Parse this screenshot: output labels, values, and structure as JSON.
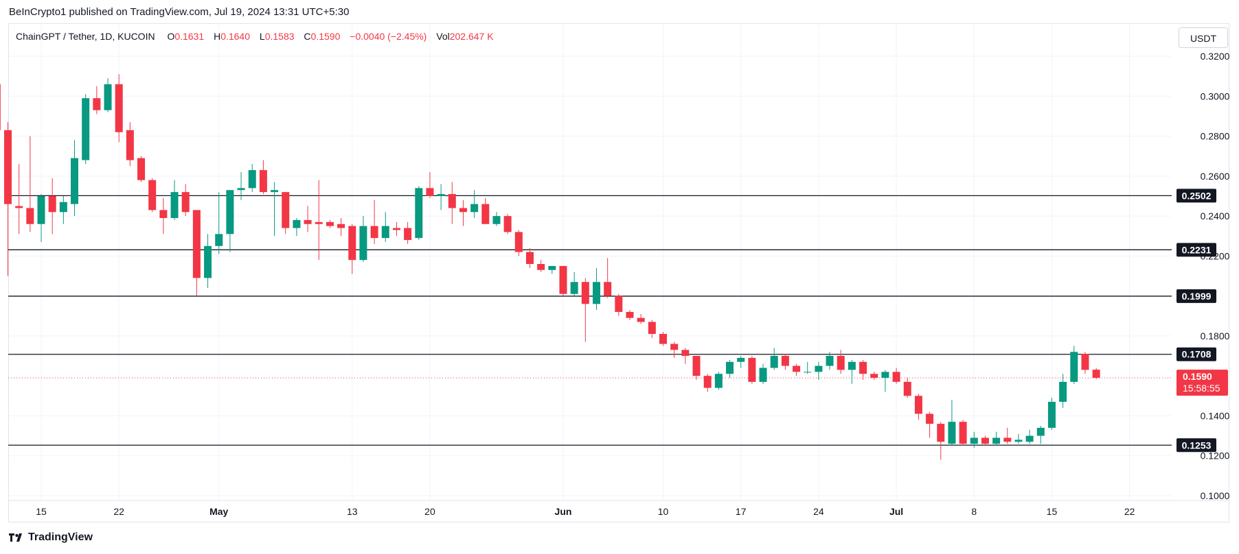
{
  "header": {
    "published": "BeInCrypto1 published on TradingView.com, Jul 19, 2024 13:31 UTC+5:30"
  },
  "legend": {
    "symbol": "ChainGPT / Tether, 1D, KUCOIN",
    "o_label": "O",
    "o_value": "0.1631",
    "h_label": "H",
    "h_value": "0.1640",
    "l_label": "L",
    "l_value": "0.1583",
    "c_label": "C",
    "c_value": "0.1590",
    "change": "−0.0040 (−2.45%)",
    "vol_label": "Vol",
    "vol_value": "202.647 K"
  },
  "currency_button": "USDT",
  "footer": {
    "brand": "TradingView"
  },
  "colors": {
    "up": "#089981",
    "down": "#f23645",
    "level_line": "#131722",
    "price_line": "#f23645"
  },
  "chart_data": {
    "type": "candlestick",
    "symbol": "ChainGPT / Tether",
    "timeframe": "1D",
    "exchange": "KUCOIN",
    "ylim": [
      0.095,
      0.327
    ],
    "y_ticks": [
      "0.3200",
      "0.3000",
      "0.2800",
      "0.2600",
      "0.2400",
      "0.2200",
      "0.1800",
      "0.1400",
      "0.1200",
      "0.1000"
    ],
    "x_ticks": [
      {
        "label": "15",
        "date": "2024-04-15"
      },
      {
        "label": "22",
        "date": "2024-04-22"
      },
      {
        "label": "May",
        "date": "2024-05-01"
      },
      {
        "label": "13",
        "date": "2024-05-13"
      },
      {
        "label": "20",
        "date": "2024-05-20"
      },
      {
        "label": "Jun",
        "date": "2024-06-01"
      },
      {
        "label": "10",
        "date": "2024-06-10"
      },
      {
        "label": "17",
        "date": "2024-06-17"
      },
      {
        "label": "24",
        "date": "2024-06-24"
      },
      {
        "label": "Jul",
        "date": "2024-07-01"
      },
      {
        "label": "8",
        "date": "2024-07-08"
      },
      {
        "label": "15",
        "date": "2024-07-15"
      },
      {
        "label": "22",
        "date": "2024-07-22"
      }
    ],
    "horizontal_levels": [
      0.2502,
      0.2231,
      0.1999,
      0.1708,
      0.1253
    ],
    "last_price": {
      "value": 0.159,
      "label": "0.1590",
      "countdown": "15:58:55"
    },
    "candles": [
      {
        "date": "2024-04-11",
        "o": 0.306,
        "h": 0.307,
        "l": 0.282,
        "c": 0.283
      },
      {
        "date": "2024-04-12",
        "o": 0.283,
        "h": 0.287,
        "l": 0.21,
        "c": 0.246
      },
      {
        "date": "2024-04-13",
        "o": 0.245,
        "h": 0.266,
        "l": 0.231,
        "c": 0.244
      },
      {
        "date": "2024-04-14",
        "o": 0.244,
        "h": 0.28,
        "l": 0.232,
        "c": 0.236
      },
      {
        "date": "2024-04-15",
        "o": 0.236,
        "h": 0.251,
        "l": 0.227,
        "c": 0.25
      },
      {
        "date": "2024-04-16",
        "o": 0.25,
        "h": 0.259,
        "l": 0.231,
        "c": 0.242
      },
      {
        "date": "2024-04-17",
        "o": 0.242,
        "h": 0.25,
        "l": 0.236,
        "c": 0.247
      },
      {
        "date": "2024-04-18",
        "o": 0.246,
        "h": 0.278,
        "l": 0.24,
        "c": 0.269
      },
      {
        "date": "2024-04-19",
        "o": 0.268,
        "h": 0.301,
        "l": 0.266,
        "c": 0.299
      },
      {
        "date": "2024-04-20",
        "o": 0.299,
        "h": 0.305,
        "l": 0.291,
        "c": 0.293
      },
      {
        "date": "2024-04-21",
        "o": 0.293,
        "h": 0.309,
        "l": 0.292,
        "c": 0.306
      },
      {
        "date": "2024-04-22",
        "o": 0.306,
        "h": 0.311,
        "l": 0.277,
        "c": 0.282
      },
      {
        "date": "2024-04-23",
        "o": 0.283,
        "h": 0.287,
        "l": 0.265,
        "c": 0.268
      },
      {
        "date": "2024-04-24",
        "o": 0.269,
        "h": 0.27,
        "l": 0.257,
        "c": 0.258
      },
      {
        "date": "2024-04-25",
        "o": 0.258,
        "h": 0.259,
        "l": 0.242,
        "c": 0.243
      },
      {
        "date": "2024-04-26",
        "o": 0.243,
        "h": 0.249,
        "l": 0.231,
        "c": 0.239
      },
      {
        "date": "2024-04-27",
        "o": 0.239,
        "h": 0.258,
        "l": 0.238,
        "c": 0.252
      },
      {
        "date": "2024-04-28",
        "o": 0.252,
        "h": 0.256,
        "l": 0.24,
        "c": 0.242
      },
      {
        "date": "2024-04-29",
        "o": 0.243,
        "h": 0.243,
        "l": 0.2,
        "c": 0.209
      },
      {
        "date": "2024-04-30",
        "o": 0.209,
        "h": 0.231,
        "l": 0.204,
        "c": 0.225
      },
      {
        "date": "2024-05-01",
        "o": 0.225,
        "h": 0.252,
        "l": 0.221,
        "c": 0.231
      },
      {
        "date": "2024-05-02",
        "o": 0.231,
        "h": 0.253,
        "l": 0.222,
        "c": 0.253
      },
      {
        "date": "2024-05-03",
        "o": 0.253,
        "h": 0.262,
        "l": 0.248,
        "c": 0.254
      },
      {
        "date": "2024-05-04",
        "o": 0.254,
        "h": 0.266,
        "l": 0.252,
        "c": 0.263
      },
      {
        "date": "2024-05-05",
        "o": 0.263,
        "h": 0.268,
        "l": 0.251,
        "c": 0.252
      },
      {
        "date": "2024-05-06",
        "o": 0.252,
        "h": 0.257,
        "l": 0.23,
        "c": 0.253
      },
      {
        "date": "2024-05-07",
        "o": 0.252,
        "h": 0.252,
        "l": 0.231,
        "c": 0.234
      },
      {
        "date": "2024-05-08",
        "o": 0.234,
        "h": 0.239,
        "l": 0.23,
        "c": 0.238
      },
      {
        "date": "2024-05-09",
        "o": 0.238,
        "h": 0.245,
        "l": 0.232,
        "c": 0.236
      },
      {
        "date": "2024-05-10",
        "o": 0.237,
        "h": 0.258,
        "l": 0.218,
        "c": 0.236
      },
      {
        "date": "2024-05-11",
        "o": 0.237,
        "h": 0.238,
        "l": 0.234,
        "c": 0.235
      },
      {
        "date": "2024-05-12",
        "o": 0.236,
        "h": 0.239,
        "l": 0.23,
        "c": 0.234
      },
      {
        "date": "2024-05-13",
        "o": 0.235,
        "h": 0.236,
        "l": 0.211,
        "c": 0.218
      },
      {
        "date": "2024-05-14",
        "o": 0.218,
        "h": 0.24,
        "l": 0.217,
        "c": 0.235
      },
      {
        "date": "2024-05-15",
        "o": 0.235,
        "h": 0.248,
        "l": 0.226,
        "c": 0.229
      },
      {
        "date": "2024-05-16",
        "o": 0.229,
        "h": 0.242,
        "l": 0.227,
        "c": 0.235
      },
      {
        "date": "2024-05-17",
        "o": 0.234,
        "h": 0.237,
        "l": 0.23,
        "c": 0.233
      },
      {
        "date": "2024-05-18",
        "o": 0.234,
        "h": 0.237,
        "l": 0.226,
        "c": 0.228
      },
      {
        "date": "2024-05-19",
        "o": 0.229,
        "h": 0.255,
        "l": 0.228,
        "c": 0.254
      },
      {
        "date": "2024-05-20",
        "o": 0.254,
        "h": 0.262,
        "l": 0.249,
        "c": 0.25
      },
      {
        "date": "2024-05-21",
        "o": 0.25,
        "h": 0.256,
        "l": 0.243,
        "c": 0.251
      },
      {
        "date": "2024-05-22",
        "o": 0.251,
        "h": 0.257,
        "l": 0.236,
        "c": 0.244
      },
      {
        "date": "2024-05-23",
        "o": 0.244,
        "h": 0.248,
        "l": 0.235,
        "c": 0.242
      },
      {
        "date": "2024-05-24",
        "o": 0.242,
        "h": 0.253,
        "l": 0.239,
        "c": 0.246
      },
      {
        "date": "2024-05-25",
        "o": 0.246,
        "h": 0.249,
        "l": 0.236,
        "c": 0.236
      },
      {
        "date": "2024-05-26",
        "o": 0.236,
        "h": 0.242,
        "l": 0.235,
        "c": 0.24
      },
      {
        "date": "2024-05-27",
        "o": 0.24,
        "h": 0.241,
        "l": 0.231,
        "c": 0.232
      },
      {
        "date": "2024-05-28",
        "o": 0.232,
        "h": 0.233,
        "l": 0.22,
        "c": 0.222
      },
      {
        "date": "2024-05-29",
        "o": 0.222,
        "h": 0.224,
        "l": 0.214,
        "c": 0.216
      },
      {
        "date": "2024-05-30",
        "o": 0.216,
        "h": 0.218,
        "l": 0.212,
        "c": 0.213
      },
      {
        "date": "2024-05-31",
        "o": 0.213,
        "h": 0.215,
        "l": 0.211,
        "c": 0.215
      },
      {
        "date": "2024-06-01",
        "o": 0.215,
        "h": 0.215,
        "l": 0.2,
        "c": 0.201
      },
      {
        "date": "2024-06-02",
        "o": 0.201,
        "h": 0.212,
        "l": 0.2,
        "c": 0.207
      },
      {
        "date": "2024-06-03",
        "o": 0.207,
        "h": 0.209,
        "l": 0.177,
        "c": 0.196
      },
      {
        "date": "2024-06-04",
        "o": 0.196,
        "h": 0.214,
        "l": 0.193,
        "c": 0.207
      },
      {
        "date": "2024-06-05",
        "o": 0.207,
        "h": 0.219,
        "l": 0.199,
        "c": 0.2
      },
      {
        "date": "2024-06-06",
        "o": 0.2,
        "h": 0.201,
        "l": 0.19,
        "c": 0.192
      },
      {
        "date": "2024-06-07",
        "o": 0.192,
        "h": 0.193,
        "l": 0.188,
        "c": 0.189
      },
      {
        "date": "2024-06-08",
        "o": 0.189,
        "h": 0.191,
        "l": 0.186,
        "c": 0.187
      },
      {
        "date": "2024-06-09",
        "o": 0.187,
        "h": 0.188,
        "l": 0.179,
        "c": 0.181
      },
      {
        "date": "2024-06-10",
        "o": 0.181,
        "h": 0.182,
        "l": 0.175,
        "c": 0.176
      },
      {
        "date": "2024-06-11",
        "o": 0.176,
        "h": 0.177,
        "l": 0.169,
        "c": 0.173
      },
      {
        "date": "2024-06-12",
        "o": 0.173,
        "h": 0.174,
        "l": 0.166,
        "c": 0.17
      },
      {
        "date": "2024-06-13",
        "o": 0.17,
        "h": 0.17,
        "l": 0.158,
        "c": 0.16
      },
      {
        "date": "2024-06-14",
        "o": 0.16,
        "h": 0.161,
        "l": 0.152,
        "c": 0.154
      },
      {
        "date": "2024-06-15",
        "o": 0.154,
        "h": 0.162,
        "l": 0.153,
        "c": 0.161
      },
      {
        "date": "2024-06-16",
        "o": 0.161,
        "h": 0.168,
        "l": 0.159,
        "c": 0.167
      },
      {
        "date": "2024-06-17",
        "o": 0.167,
        "h": 0.17,
        "l": 0.164,
        "c": 0.169
      },
      {
        "date": "2024-06-18",
        "o": 0.169,
        "h": 0.17,
        "l": 0.156,
        "c": 0.157
      },
      {
        "date": "2024-06-19",
        "o": 0.157,
        "h": 0.166,
        "l": 0.156,
        "c": 0.164
      },
      {
        "date": "2024-06-20",
        "o": 0.164,
        "h": 0.174,
        "l": 0.163,
        "c": 0.17
      },
      {
        "date": "2024-06-21",
        "o": 0.17,
        "h": 0.171,
        "l": 0.163,
        "c": 0.165
      },
      {
        "date": "2024-06-22",
        "o": 0.165,
        "h": 0.166,
        "l": 0.16,
        "c": 0.162
      },
      {
        "date": "2024-06-23",
        "o": 0.162,
        "h": 0.167,
        "l": 0.161,
        "c": 0.162
      },
      {
        "date": "2024-06-24",
        "o": 0.162,
        "h": 0.167,
        "l": 0.158,
        "c": 0.165
      },
      {
        "date": "2024-06-25",
        "o": 0.165,
        "h": 0.172,
        "l": 0.163,
        "c": 0.17
      },
      {
        "date": "2024-06-26",
        "o": 0.17,
        "h": 0.173,
        "l": 0.161,
        "c": 0.163
      },
      {
        "date": "2024-06-27",
        "o": 0.163,
        "h": 0.168,
        "l": 0.156,
        "c": 0.167
      },
      {
        "date": "2024-06-28",
        "o": 0.167,
        "h": 0.168,
        "l": 0.158,
        "c": 0.161
      },
      {
        "date": "2024-06-29",
        "o": 0.161,
        "h": 0.162,
        "l": 0.158,
        "c": 0.159
      },
      {
        "date": "2024-06-30",
        "o": 0.159,
        "h": 0.163,
        "l": 0.152,
        "c": 0.162
      },
      {
        "date": "2024-07-01",
        "o": 0.162,
        "h": 0.164,
        "l": 0.156,
        "c": 0.157
      },
      {
        "date": "2024-07-02",
        "o": 0.157,
        "h": 0.159,
        "l": 0.149,
        "c": 0.15
      },
      {
        "date": "2024-07-03",
        "o": 0.15,
        "h": 0.151,
        "l": 0.138,
        "c": 0.141
      },
      {
        "date": "2024-07-04",
        "o": 0.141,
        "h": 0.142,
        "l": 0.129,
        "c": 0.136
      },
      {
        "date": "2024-07-05",
        "o": 0.136,
        "h": 0.137,
        "l": 0.118,
        "c": 0.127
      },
      {
        "date": "2024-07-06",
        "o": 0.126,
        "h": 0.148,
        "l": 0.125,
        "c": 0.137
      },
      {
        "date": "2024-07-07",
        "o": 0.137,
        "h": 0.138,
        "l": 0.125,
        "c": 0.126
      },
      {
        "date": "2024-07-08",
        "o": 0.126,
        "h": 0.132,
        "l": 0.124,
        "c": 0.129
      },
      {
        "date": "2024-07-09",
        "o": 0.129,
        "h": 0.13,
        "l": 0.125,
        "c": 0.126
      },
      {
        "date": "2024-07-10",
        "o": 0.126,
        "h": 0.132,
        "l": 0.125,
        "c": 0.129
      },
      {
        "date": "2024-07-11",
        "o": 0.129,
        "h": 0.134,
        "l": 0.126,
        "c": 0.127
      },
      {
        "date": "2024-07-12",
        "o": 0.127,
        "h": 0.131,
        "l": 0.126,
        "c": 0.128
      },
      {
        "date": "2024-07-13",
        "o": 0.127,
        "h": 0.133,
        "l": 0.126,
        "c": 0.13
      },
      {
        "date": "2024-07-14",
        "o": 0.13,
        "h": 0.135,
        "l": 0.126,
        "c": 0.134
      },
      {
        "date": "2024-07-15",
        "o": 0.134,
        "h": 0.149,
        "l": 0.133,
        "c": 0.147
      },
      {
        "date": "2024-07-16",
        "o": 0.147,
        "h": 0.161,
        "l": 0.144,
        "c": 0.157
      },
      {
        "date": "2024-07-17",
        "o": 0.157,
        "h": 0.175,
        "l": 0.156,
        "c": 0.172
      },
      {
        "date": "2024-07-18",
        "o": 0.171,
        "h": 0.172,
        "l": 0.161,
        "c": 0.163
      },
      {
        "date": "2024-07-19",
        "o": 0.1631,
        "h": 0.164,
        "l": 0.1583,
        "c": 0.159
      }
    ]
  }
}
